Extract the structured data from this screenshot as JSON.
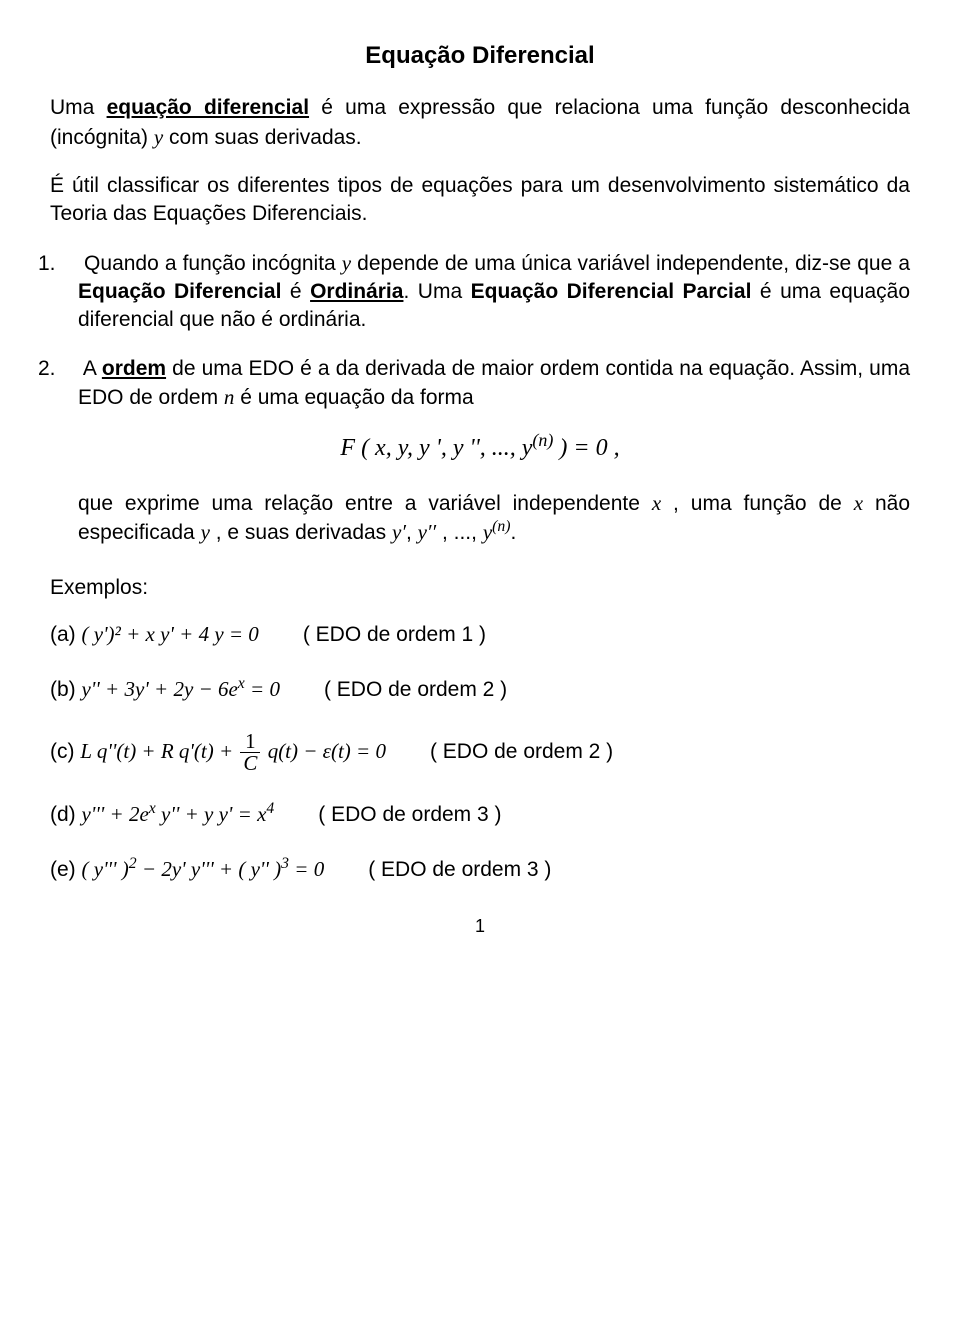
{
  "title": "Equação Diferencial",
  "p1a": "Uma ",
  "p1b": "equação diferencial",
  "p1c": " é uma expressão que relaciona uma função desconhecida (incógnita) ",
  "p1d": "y",
  "p1e": " com suas derivadas.",
  "p2": "É útil classificar os diferentes tipos de equações para um desenvolvimento sistemático da Teoria das Equações Diferenciais.",
  "item1_num": "1.",
  "item1a": " Quando a função incógnita ",
  "item1b": "y",
  "item1c": " depende de uma única variável independente, diz-se que a ",
  "item1d": "Equação Diferencial",
  "item1e": " é ",
  "item1f": "Ordinária",
  "item1g": ". Uma ",
  "item1h": "Equação Diferencial Parcial",
  "item1i": " é uma equação diferencial que não é ordinária.",
  "item2_num": "2.",
  "item2a": " A ",
  "item2b": "ordem",
  "item2c": " de uma EDO é a da derivada de maior ordem contida na equação. Assim, uma EDO de ordem ",
  "item2d": "n",
  "item2e": " é uma equação da forma",
  "eq1": "F ( x, y, y ', y '', ..., y",
  "eq1exp": "(n)",
  "eq1b": " ) = 0 ,",
  "item2fa": "que exprime uma  relação  entre  a variável independente ",
  "item2fb": "x",
  "item2fc": " , uma função de ",
  "item2fd": "x",
  "item2fe": " não especificada ",
  "item2ff": "y",
  "item2fg": " , e suas derivadas ",
  "item2fh": "y′",
  "item2fi": ", ",
  "item2fj": "y′′",
  "item2fk": " , ..., ",
  "item2fl": "y",
  "item2flsup": "(n)",
  "item2fm": ".",
  "exHeading": "Exemplos:",
  "exA_lbl": "(a) ",
  "exA_eq": "( y')² + x y' + 4 y = 0",
  "exA_txt": "( EDO de ordem 1 )",
  "exB_lbl": "(b) ",
  "exB_eq": "y'' + 3y' + 2y − 6e",
  "exB_exp": "x",
  "exB_eq2": " = 0",
  "exB_txt": "( EDO de ordem 2 )",
  "exC_lbl": "(c) ",
  "exC_eq1": "L q''(t) + R q'(t) + ",
  "exC_frac_top": "1",
  "exC_frac_bot": "C",
  "exC_eq2": " q(t) − ε(t) = 0",
  "exC_txt": "( EDO de ordem 2 )",
  "exD_lbl": "(d) ",
  "exD_eq1": "y''' + 2e",
  "exD_exp1": "x",
  "exD_eq2": " y'' + y y' = x",
  "exD_exp2": "4",
  "exD_txt": "( EDO de ordem 3 )",
  "exE_lbl": "(e) ",
  "exE_eq1": "( y''' )",
  "exE_exp1": "2",
  "exE_eq2": " − 2y' y''' + ( y'' )",
  "exE_exp2": "3",
  "exE_eq3": " = 0",
  "exE_txt": "( EDO de ordem 3 )",
  "pageNum": "1"
}
